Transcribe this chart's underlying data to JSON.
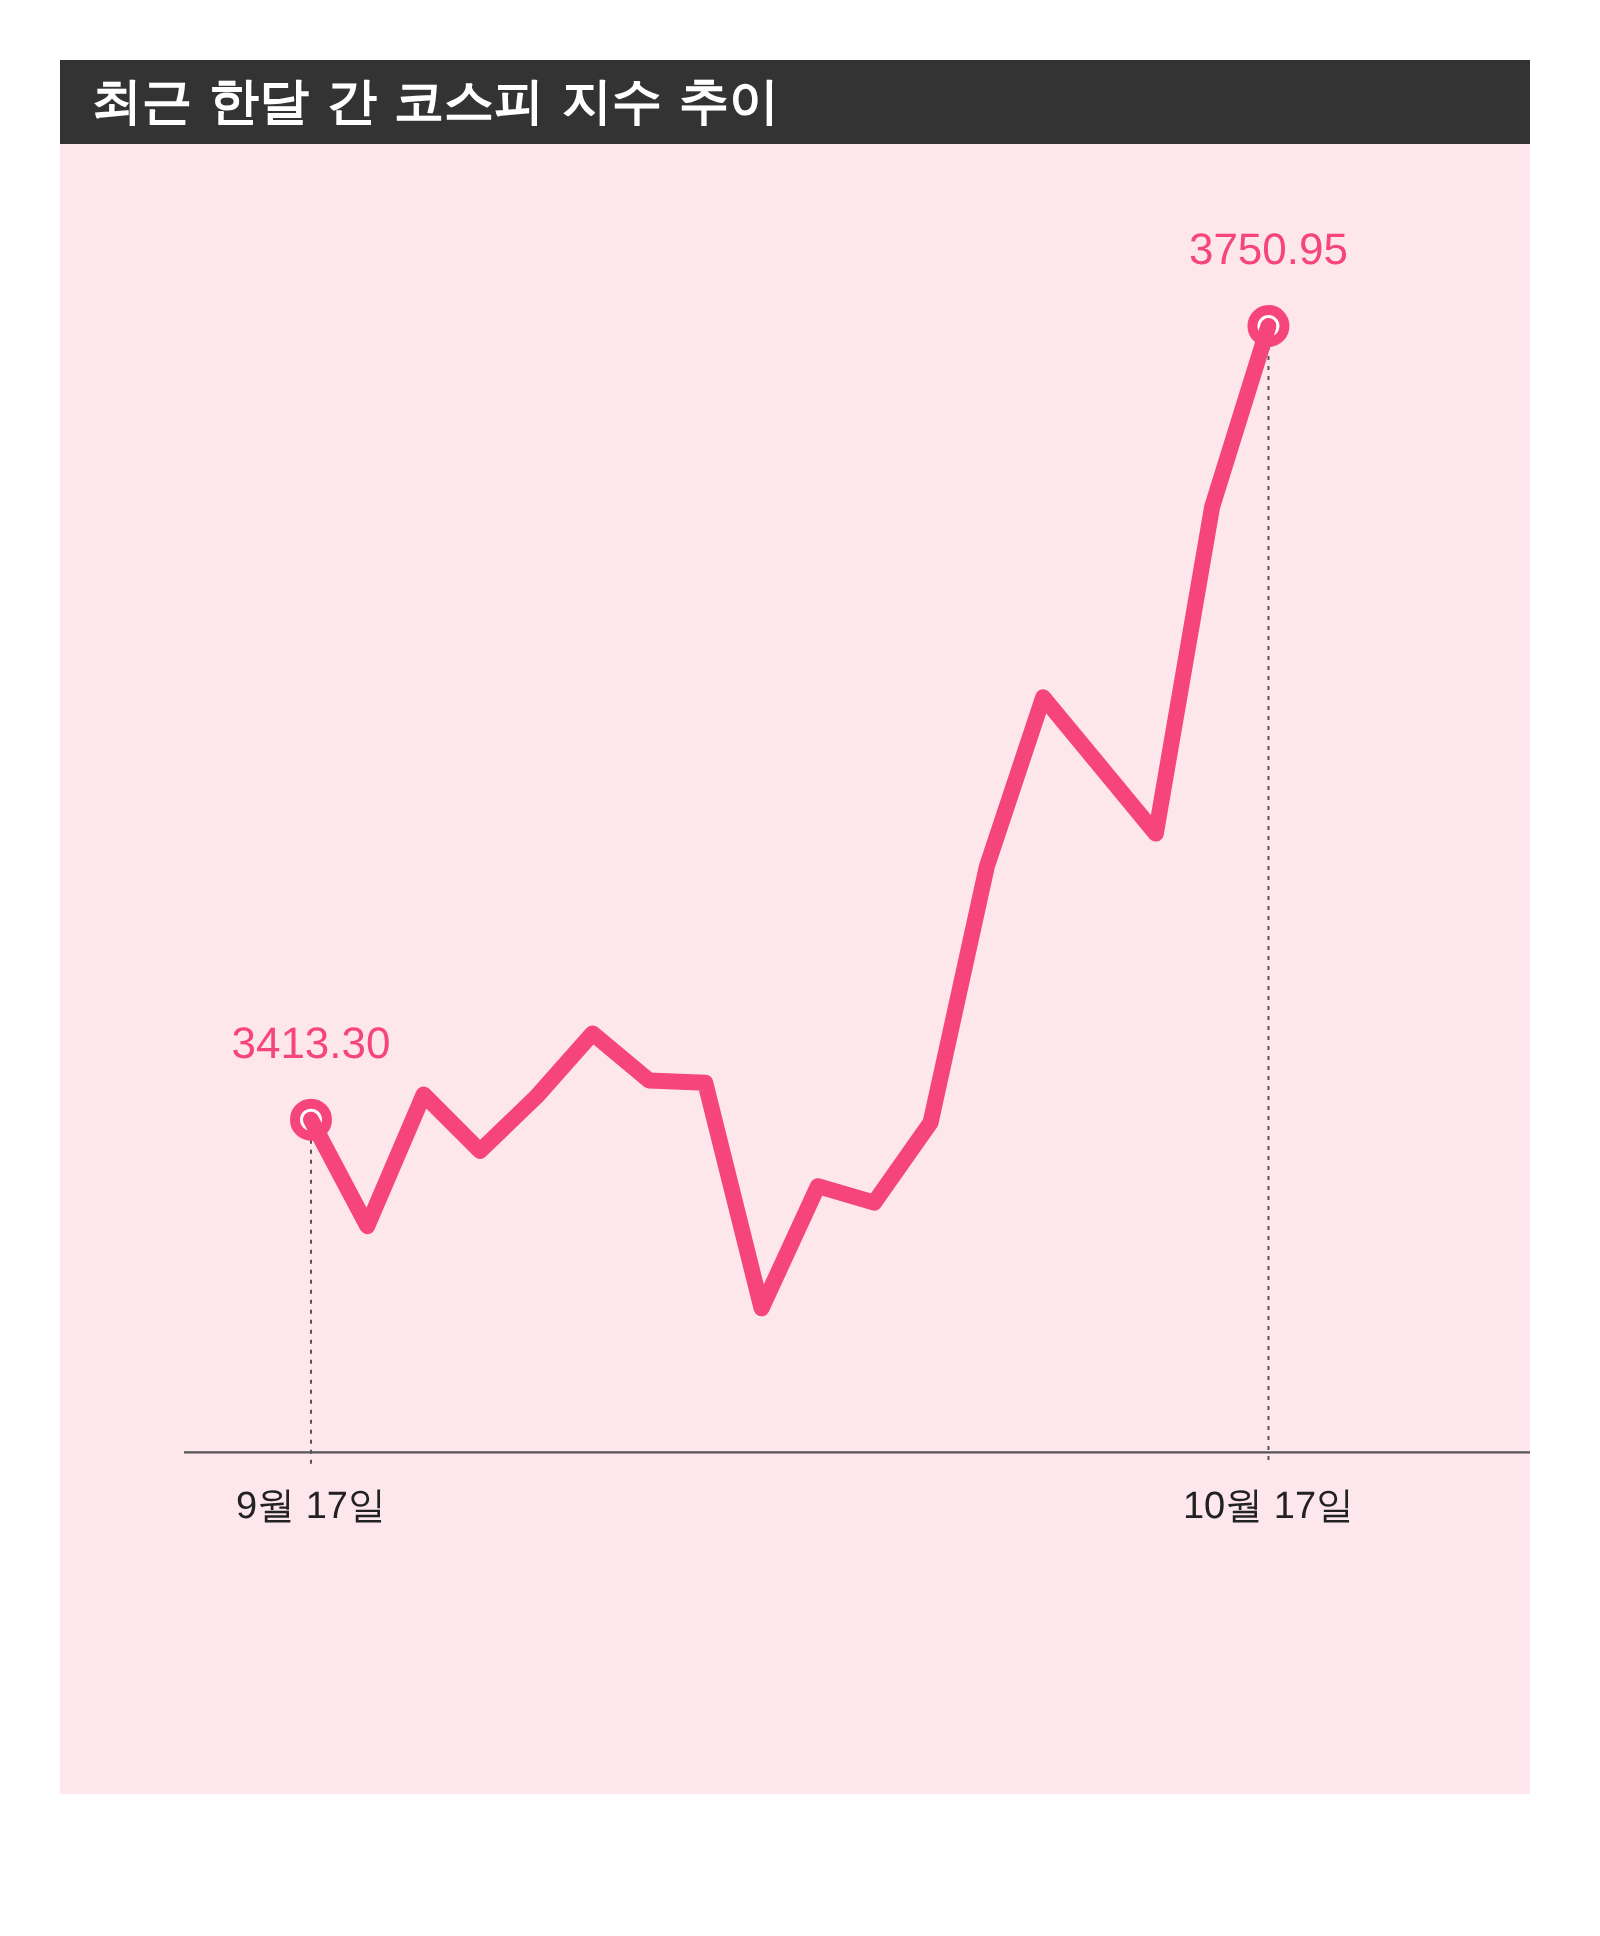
{
  "chart_data": {
    "type": "line",
    "title": "최근 한달 간 코스피 지수 추이",
    "categories": [
      "9월 17일",
      null,
      null,
      null,
      null,
      null,
      null,
      null,
      null,
      null,
      null,
      null,
      null,
      null,
      null,
      null,
      null,
      "10월 17일"
    ],
    "series": [
      {
        "color": "#f5457a",
        "marker": "none",
        "values": [
          3413.3,
          3368,
          3424,
          3400,
          3423,
          3450,
          3430,
          3429,
          3333,
          3385,
          3378,
          3412,
          3521,
          3593,
          3564,
          3535,
          3674,
          3750.95
        ]
      },
      {
        "type": "scatter",
        "color": "#f5457a",
        "x": [
          "9월 17일",
          "10월 17일"
        ],
        "values": [
          3413.3,
          3750.95
        ],
        "value_labels": [
          "3413.30",
          "3750.95"
        ]
      }
    ],
    "tick_labels": "x",
    "grid": false,
    "legend": false,
    "marker": "circle",
    "line_style": "solid",
    "ref_lines": [
      {
        "axis": "x",
        "value": "9월 17일",
        "line_style": "dotted",
        "color": "#555555"
      },
      {
        "axis": "x",
        "value": "10월 17일",
        "line_style": "dotted",
        "color": "#555555"
      }
    ]
  }
}
